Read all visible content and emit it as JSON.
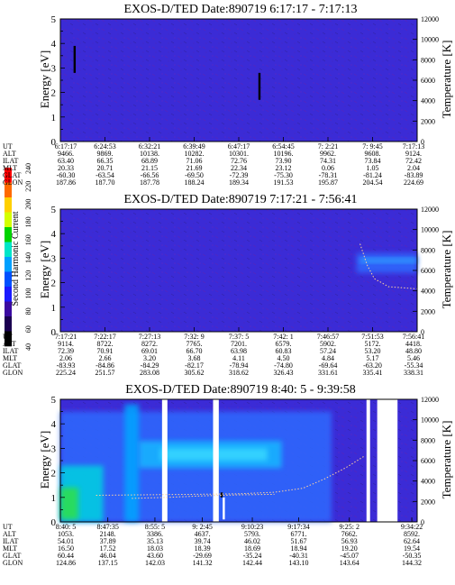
{
  "colorbar": {
    "label": "Second Harmonic Current",
    "ticks": [
      "240",
      "220",
      "200",
      "180",
      "160",
      "140",
      "120",
      "100",
      "80",
      "60",
      "40"
    ],
    "colors": [
      "#ff0000",
      "#ff6a00",
      "#ffd000",
      "#d4ff00",
      "#00d400",
      "#00e6c8",
      "#00a0ff",
      "#0050ff",
      "#1a1aff",
      "#3a0aa0",
      "#1a0050",
      "#000000"
    ]
  },
  "chart_data": [
    {
      "type": "heatmap",
      "title": "EXOS-D/TED   Date:890719  6:17:17 - 7:17:13",
      "ylabel": "Energy [eV]",
      "y2label": "Temperature [K]",
      "ylim": [
        0,
        5
      ],
      "y2lim": [
        0,
        12000
      ],
      "yticks": [
        "0",
        "1",
        "2",
        "3",
        "4",
        "5"
      ],
      "y2ticks": [
        "0",
        "2000",
        "4000",
        "6000",
        "8000",
        "10000",
        "12000"
      ],
      "background_color": "#3b2bd6",
      "table_rows": [
        "UT",
        "ALT",
        "ILAT",
        "MLT",
        "GLAT",
        "GLON"
      ],
      "columns": [
        [
          "6:17:17",
          "9466.",
          "63.40",
          "20.33",
          "-60.30",
          "187.86"
        ],
        [
          "6:24:53",
          "9869.",
          "66.35",
          "20.71",
          "-63.54",
          "187.70"
        ],
        [
          "6:32:21",
          "10138.",
          "68.89",
          "21.15",
          "-66.56",
          "187.78"
        ],
        [
          "6:39:49",
          "10282.",
          "71.06",
          "21.69",
          "-69.50",
          "188.24"
        ],
        [
          "6:47:17",
          "10301.",
          "72.76",
          "22.34",
          "-72.39",
          "189.34"
        ],
        [
          "6:54:45",
          "10196.",
          "73.90",
          "23.12",
          "-75.30",
          "191.53"
        ],
        [
          "7: 2:21",
          "9962.",
          "74.31",
          "0.06",
          "-78.31",
          "195.87"
        ],
        [
          "7: 9:45",
          "9608.",
          "73.84",
          "1.05",
          "-81.24",
          "204.54"
        ],
        [
          "7:17:13",
          "9124.",
          "72.42",
          "2.04",
          "-83.89",
          "224.69"
        ]
      ],
      "features": [
        {
          "kind": "spike",
          "x_frac": 0.04,
          "e0": 2.8,
          "e1": 3.9,
          "color": "#000000"
        },
        {
          "kind": "spike",
          "x_frac": 0.558,
          "e0": 1.7,
          "e1": 2.8,
          "color": "#000000"
        }
      ]
    },
    {
      "type": "heatmap",
      "title": "EXOS-D/TED   Date:890719  7:17:21 - 7:56:41",
      "ylabel": "Energy [eV]",
      "y2label": "Temperature [K]",
      "ylim": [
        0,
        5
      ],
      "y2lim": [
        0,
        12000
      ],
      "yticks": [
        "0",
        "1",
        "2",
        "3",
        "4",
        "5"
      ],
      "y2ticks": [
        "0",
        "2000",
        "4000",
        "6000",
        "8000",
        "10000",
        "12000"
      ],
      "background_color": "#3b2bd6",
      "table_rows": [
        "UT",
        "ALT",
        "ILAT",
        "MLT",
        "GLAT",
        "GLON"
      ],
      "columns": [
        [
          "7:17:21",
          "9114.",
          "72.39",
          "2.06",
          "-83.93",
          "225.24"
        ],
        [
          "7:22:17",
          "8722.",
          "70.91",
          "2.66",
          "-84.86",
          "251.57"
        ],
        [
          "7:27:13",
          "8272.",
          "69.01",
          "3.20",
          "-84.29",
          "283.08"
        ],
        [
          "7:32: 9",
          "7765.",
          "66.70",
          "3.68",
          "-82.17",
          "305.62"
        ],
        [
          "7:37: 5",
          "7201.",
          "63.98",
          "4.11",
          "-78.94",
          "318.62"
        ],
        [
          "7:42: 1",
          "6579.",
          "60.83",
          "4.50",
          "-74.80",
          "326.43"
        ],
        [
          "7:46:57",
          "5902.",
          "57.24",
          "4.84",
          "-69.64",
          "331.61"
        ],
        [
          "7:51:53",
          "5172.",
          "53.20",
          "5.17",
          "-63.20",
          "335.41"
        ],
        [
          "7:56:41",
          "4418.",
          "48.80",
          "5.46",
          "-55.34",
          "338.31"
        ]
      ],
      "features": [
        {
          "kind": "glow",
          "x0": 0.83,
          "x1": 1.0,
          "e0": 2.4,
          "e1": 3.2,
          "color": "#2f6bff"
        },
        {
          "kind": "glow",
          "x0": 0.84,
          "x1": 1.0,
          "e0": 2.8,
          "e1": 3.0,
          "color": "#2fa0ff"
        },
        {
          "kind": "temp",
          "points": [
            [
              0.84,
              8600
            ],
            [
              0.86,
              6500
            ],
            [
              0.88,
              5200
            ],
            [
              0.92,
              4400
            ],
            [
              1.0,
              4200
            ]
          ]
        }
      ]
    },
    {
      "type": "heatmap",
      "title": "EXOS-D/TED   Date:890719  8:40: 5 - 9:39:58",
      "ylabel": "Energy [eV]",
      "y2label": "Temperature [K]",
      "ylim": [
        0,
        5
      ],
      "y2lim": [
        0,
        12000
      ],
      "yticks": [
        "0",
        "1",
        "2",
        "3",
        "4",
        "5"
      ],
      "y2ticks": [
        "0",
        "2000",
        "4000",
        "6000",
        "8000",
        "10000",
        "12000"
      ],
      "background_color": "#3b2bd6",
      "table_rows": [
        "UT",
        "ALT",
        "ILAT",
        "MLT",
        "GLAT",
        "GLON"
      ],
      "columns": [
        [
          "8:40: 5",
          "1053.",
          "54.01",
          "16.50",
          "60.44",
          "124.86"
        ],
        [
          "8:47:35",
          "2148.",
          "37.89",
          "17.52",
          "46.04",
          "137.15"
        ],
        [
          "8:55: 5",
          "3386.",
          "35.13",
          "18.03",
          "43.60",
          "142.03"
        ],
        [
          "9: 2:45",
          "4637.",
          "39.74",
          "18.39",
          "-29.69",
          "141.32"
        ],
        [
          "9:10:23",
          "5793.",
          "46.02",
          "18.69",
          "-35.24",
          "142.44"
        ],
        [
          "9:17:34",
          "6771.",
          "51.67",
          "18.94",
          "-40.31",
          "143.10"
        ],
        [
          "9:25: 2",
          "7662.",
          "56.93",
          "19.20",
          "-45.07",
          "143.64"
        ],
        [
          "9:34:22",
          "8592.",
          "62.64",
          "19.54",
          "-50.35",
          "144.32"
        ]
      ],
      "column_positions": [
        0.0,
        0.133,
        0.265,
        0.398,
        0.538,
        0.668,
        0.81,
        0.985
      ],
      "features": [
        {
          "kind": "glow",
          "x0": 0.0,
          "x1": 0.76,
          "e0": 0.0,
          "e1": 4.5,
          "color": "#2f6bff"
        },
        {
          "kind": "glow",
          "x0": 0.0,
          "x1": 0.12,
          "e0": 0.0,
          "e1": 2.3,
          "color": "#00d2e0"
        },
        {
          "kind": "glow",
          "x0": 0.0,
          "x1": 0.05,
          "e0": 0.1,
          "e1": 1.4,
          "color": "#2ee04a"
        },
        {
          "kind": "glow",
          "x0": 0.18,
          "x1": 0.22,
          "e0": 0.0,
          "e1": 4.8,
          "color": "#00a6ff"
        },
        {
          "kind": "glow",
          "x0": 0.22,
          "x1": 0.62,
          "e0": 2.2,
          "e1": 3.3,
          "color": "#19b8ff"
        },
        {
          "kind": "glow",
          "x0": 0.28,
          "x1": 0.58,
          "e0": 2.5,
          "e1": 3.0,
          "color": "#38d8ff"
        },
        {
          "kind": "gap",
          "x0": 0.285,
          "x1": 0.3
        },
        {
          "kind": "gap",
          "x0": 0.428,
          "x1": 0.444
        },
        {
          "kind": "gap",
          "x0": 0.858,
          "x1": 0.868
        },
        {
          "kind": "gap",
          "x0": 0.888,
          "x1": 0.945
        },
        {
          "kind": "spike",
          "x_frac": 0.458,
          "e0": 0.1,
          "e1": 1.0,
          "color": "#ffffff"
        },
        {
          "kind": "spike",
          "x_frac": 0.452,
          "e0": 1.0,
          "e1": 1.2,
          "color": "#000000"
        },
        {
          "kind": "temp",
          "points": [
            [
              0.1,
              2600
            ],
            [
              0.22,
              2650
            ],
            [
              0.38,
              2700
            ],
            [
              0.5,
              2750
            ],
            [
              0.6,
              2900
            ],
            [
              0.68,
              3300
            ],
            [
              0.74,
              4200
            ],
            [
              0.8,
              5300
            ],
            [
              0.85,
              6400
            ]
          ]
        },
        {
          "kind": "temp",
          "points": [
            [
              0.2,
              2300
            ],
            [
              0.3,
              2400
            ],
            [
              0.4,
              2550
            ],
            [
              0.5,
              2650
            ],
            [
              0.6,
              2700
            ]
          ]
        }
      ]
    }
  ]
}
